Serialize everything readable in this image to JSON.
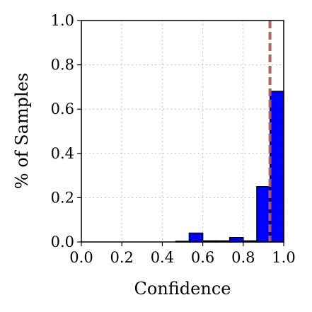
{
  "chart_data": {
    "type": "bar",
    "xlabel": "Confidence",
    "ylabel": "% of Samples",
    "xlim": [
      0.0,
      1.0
    ],
    "ylim": [
      0.0,
      1.0
    ],
    "xticks": [
      "0.0",
      "0.2",
      "0.4",
      "0.6",
      "0.8",
      "1.0"
    ],
    "yticks": [
      "0.0",
      "0.2",
      "0.4",
      "0.6",
      "0.8",
      "1.0"
    ],
    "grid": true,
    "bins": [
      {
        "x0": 0.0,
        "x1": 0.067,
        "value": 0.0
      },
      {
        "x0": 0.067,
        "x1": 0.133,
        "value": 0.0
      },
      {
        "x0": 0.133,
        "x1": 0.2,
        "value": 0.0
      },
      {
        "x0": 0.2,
        "x1": 0.267,
        "value": 0.0
      },
      {
        "x0": 0.267,
        "x1": 0.333,
        "value": 0.0
      },
      {
        "x0": 0.333,
        "x1": 0.4,
        "value": 0.0
      },
      {
        "x0": 0.4,
        "x1": 0.467,
        "value": 0.0
      },
      {
        "x0": 0.467,
        "x1": 0.533,
        "value": 0.003
      },
      {
        "x0": 0.533,
        "x1": 0.6,
        "value": 0.04
      },
      {
        "x0": 0.6,
        "x1": 0.667,
        "value": 0.005
      },
      {
        "x0": 0.667,
        "x1": 0.733,
        "value": 0.005
      },
      {
        "x0": 0.733,
        "x1": 0.8,
        "value": 0.02
      },
      {
        "x0": 0.8,
        "x1": 0.867,
        "value": 0.005
      },
      {
        "x0": 0.867,
        "x1": 0.933,
        "value": 0.25
      },
      {
        "x0": 0.933,
        "x1": 1.0,
        "value": 0.68
      }
    ],
    "bar_color": "#0000ff",
    "bar_edge_color": "#000000",
    "reference_lines": [
      {
        "x": 0.93,
        "style": "dashed",
        "color": "#808080"
      },
      {
        "x": 0.934,
        "style": "dashed",
        "color": "#c0504d"
      }
    ]
  }
}
